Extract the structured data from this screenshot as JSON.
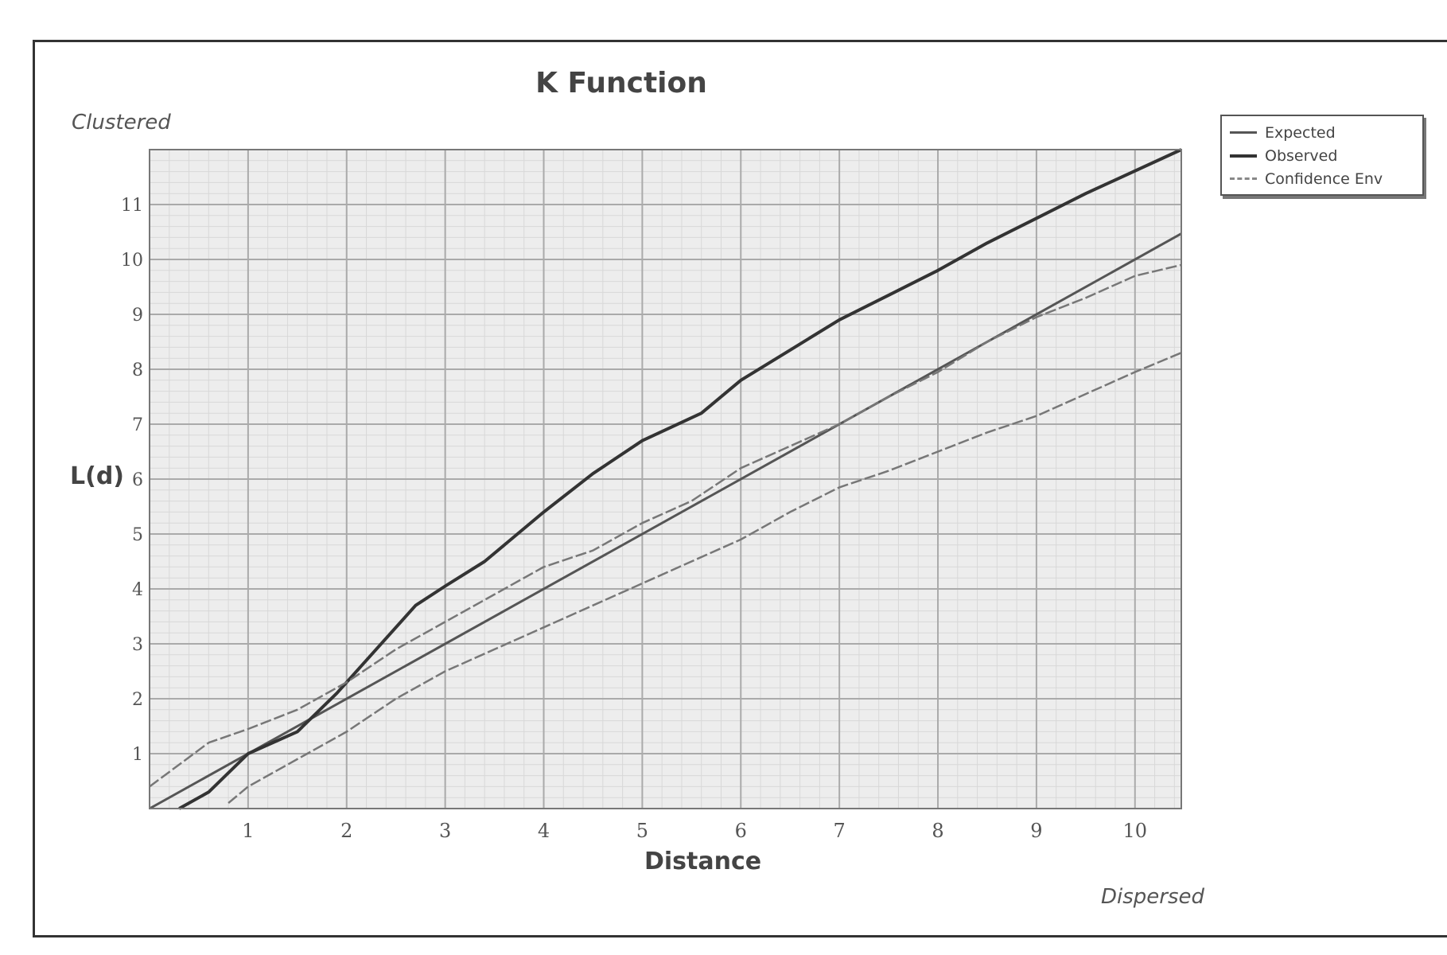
{
  "chart_data": {
    "type": "line",
    "title": "K Function",
    "xlabel": "Distance",
    "ylabel": "L(d)",
    "annotations": {
      "top_left": "Clustered",
      "bottom_right": "Dispersed"
    },
    "xlim": [
      0,
      10.47
    ],
    "ylim": [
      0,
      12
    ],
    "x_ticks": [
      1,
      2,
      3,
      4,
      5,
      6,
      7,
      8,
      9,
      10
    ],
    "y_ticks": [
      1,
      2,
      3,
      4,
      5,
      6,
      7,
      8,
      9,
      10,
      11
    ],
    "grid": true,
    "legend_position": "right",
    "series": [
      {
        "name": "Expected",
        "color": "#555555",
        "style": "solid",
        "points": [
          [
            0,
            0
          ],
          [
            10.47,
            10.47
          ]
        ]
      },
      {
        "name": "Observed",
        "color": "#333333",
        "style": "solid-bold",
        "points": [
          [
            0.3,
            0
          ],
          [
            0.6,
            0.3
          ],
          [
            1,
            1
          ],
          [
            1.5,
            1.4
          ],
          [
            1.9,
            2.1
          ],
          [
            2.3,
            2.9
          ],
          [
            2.7,
            3.7
          ],
          [
            3,
            4.05
          ],
          [
            3.4,
            4.5
          ],
          [
            4,
            5.4
          ],
          [
            4.5,
            6.1
          ],
          [
            5,
            6.7
          ],
          [
            5.6,
            7.2
          ],
          [
            6,
            7.8
          ],
          [
            6.5,
            8.35
          ],
          [
            7,
            8.9
          ],
          [
            7.5,
            9.35
          ],
          [
            8,
            9.8
          ],
          [
            8.5,
            10.3
          ],
          [
            9,
            10.75
          ],
          [
            9.5,
            11.2
          ],
          [
            10.47,
            12
          ]
        ]
      },
      {
        "name": "Confidence Env",
        "color": "#777777",
        "style": "dashed",
        "points": [
          [
            0,
            0.4
          ],
          [
            0.6,
            1.2
          ],
          [
            1,
            1.45
          ],
          [
            1.5,
            1.8
          ],
          [
            2,
            2.3
          ],
          [
            2.5,
            2.9
          ],
          [
            3,
            3.4
          ],
          [
            3.5,
            3.9
          ],
          [
            4,
            4.4
          ],
          [
            4.5,
            4.7
          ],
          [
            5,
            5.2
          ],
          [
            5.5,
            5.6
          ],
          [
            6,
            6.2
          ],
          [
            6.5,
            6.6
          ],
          [
            7,
            7
          ],
          [
            7.5,
            7.5
          ],
          [
            8,
            7.95
          ],
          [
            8.5,
            8.5
          ],
          [
            9,
            8.95
          ],
          [
            9.5,
            9.3
          ],
          [
            10,
            9.7
          ],
          [
            10.47,
            9.9
          ]
        ]
      },
      {
        "name": "Confidence Env",
        "color": "#777777",
        "style": "dashed",
        "points": [
          [
            0.8,
            0.1
          ],
          [
            1,
            0.4
          ],
          [
            1.5,
            0.9
          ],
          [
            2,
            1.4
          ],
          [
            2.5,
            2
          ],
          [
            3,
            2.5
          ],
          [
            3.5,
            2.9
          ],
          [
            4,
            3.3
          ],
          [
            4.5,
            3.7
          ],
          [
            5,
            4.1
          ],
          [
            5.5,
            4.5
          ],
          [
            6,
            4.9
          ],
          [
            6.5,
            5.4
          ],
          [
            7,
            5.85
          ],
          [
            7.5,
            6.15
          ],
          [
            8,
            6.5
          ],
          [
            8.5,
            6.85
          ],
          [
            9,
            7.15
          ],
          [
            9.5,
            7.55
          ],
          [
            10,
            7.95
          ],
          [
            10.47,
            8.3
          ]
        ]
      }
    ],
    "legend": [
      "Expected",
      "Observed",
      "Confidence Env"
    ]
  }
}
